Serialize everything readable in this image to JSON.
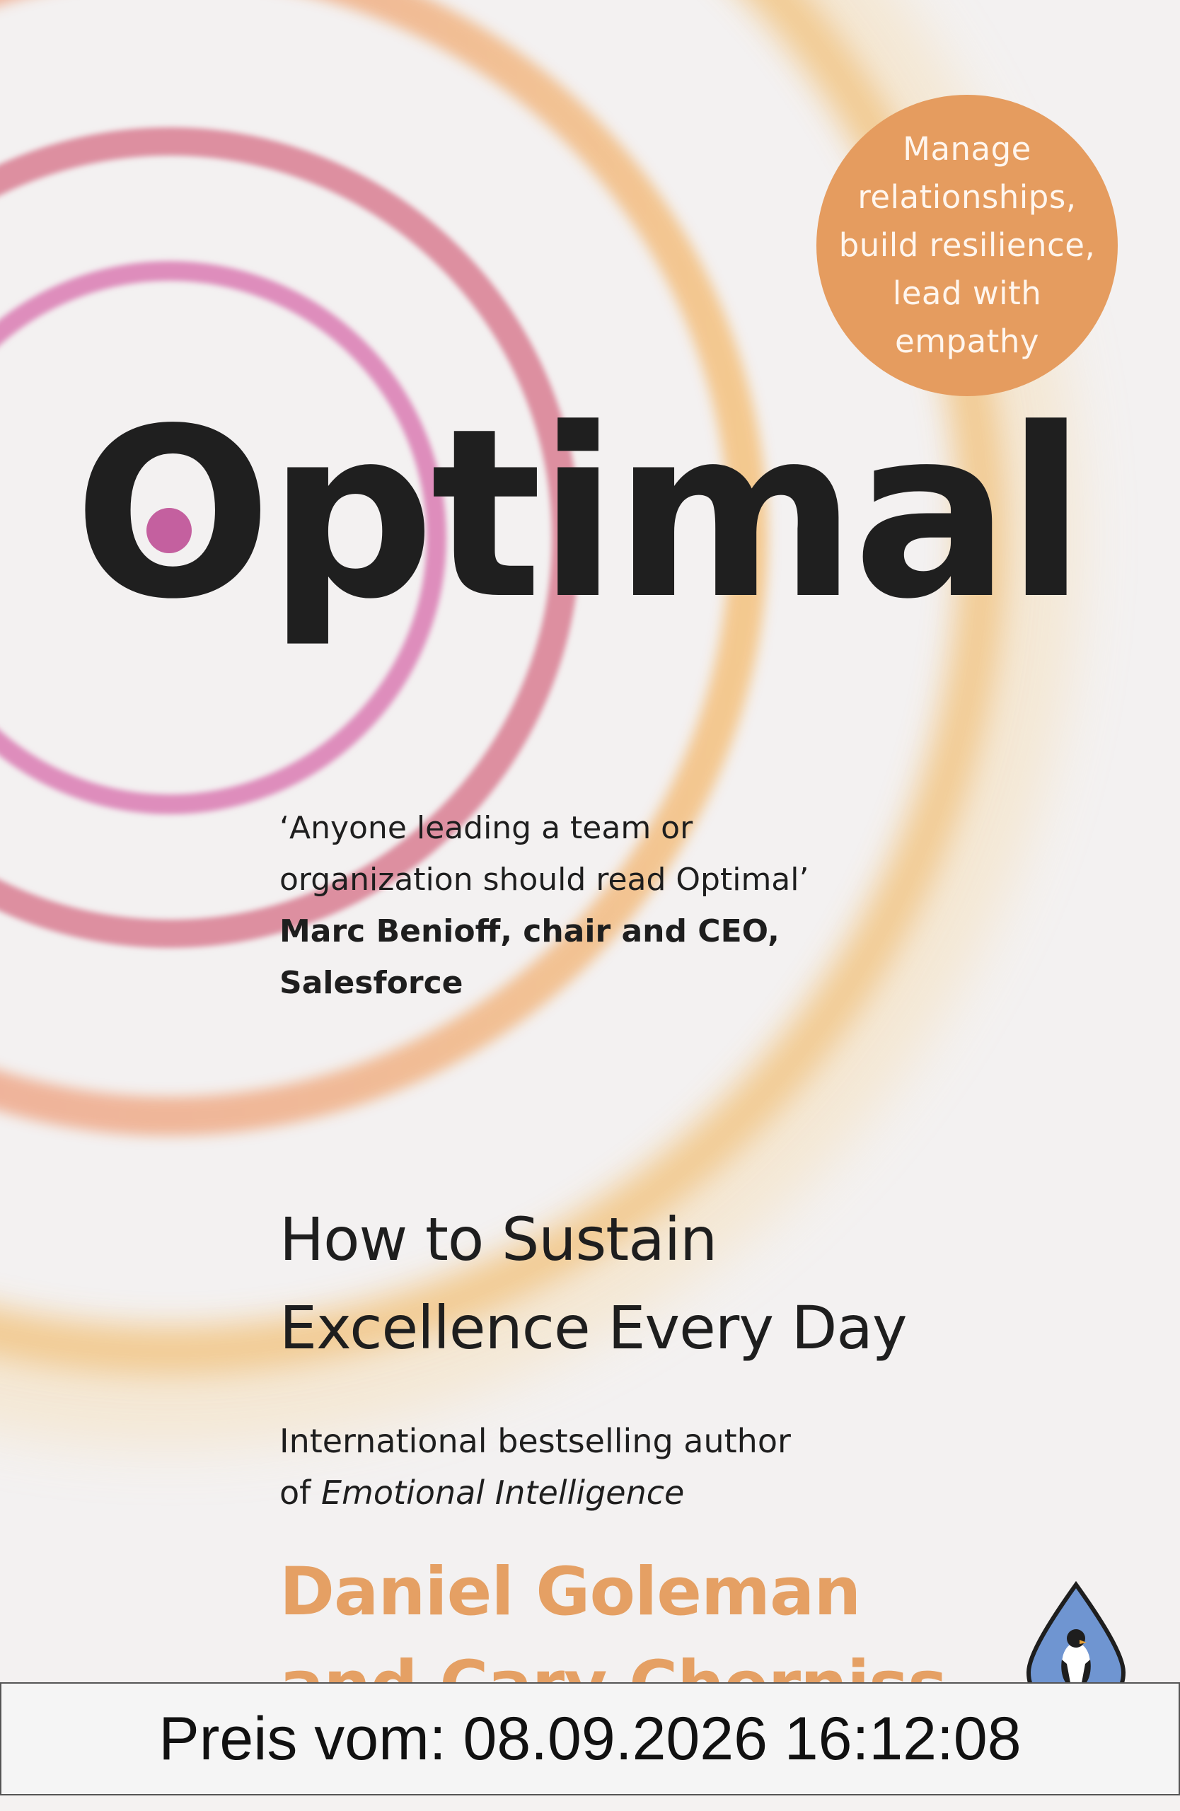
{
  "badge": {
    "lines": [
      "Manage",
      "relationships,",
      "build resilience,",
      "lead with",
      "empathy"
    ]
  },
  "title": "Optimal",
  "quote": {
    "lines": [
      "‘Anyone leading a team or",
      "organization should read Optimal’"
    ],
    "attribution": [
      "Marc Benioff, chair and CEO,",
      "Salesforce"
    ]
  },
  "subtitle": [
    "How to Sustain",
    "Excellence Every Day"
  ],
  "author_note": {
    "line1": "International bestselling author",
    "prefix": "of",
    "book": "Emotional Intelligence"
  },
  "authors": [
    "Daniel Goleman",
    "and Cary Cherniss"
  ],
  "publisher_logo": "penguin-life-logo",
  "price_label": "Preis vom: 08.09.2026 16:12:08",
  "colors": {
    "badge": "#e59c5f",
    "authors": "#e5a064",
    "title": "#1f1f1f",
    "ring_pink": "#de8dbc",
    "ring_salmon": "#dd8fa0",
    "ring_gold": "#f2c583",
    "logo_blue": "#6f95d1"
  }
}
